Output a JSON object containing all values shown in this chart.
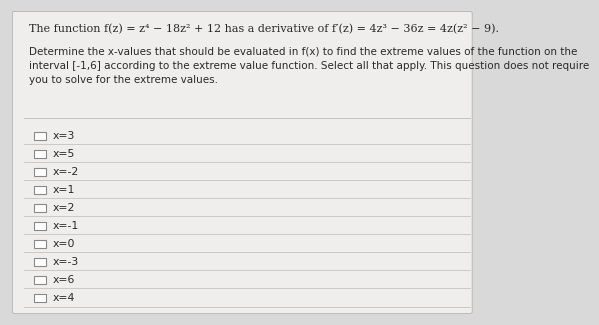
{
  "background_color": "#d9d9d9",
  "panel_color": "#f0eeec",
  "title_line": "The function f(z) = z⁴ − 18z² + 12 has a derivative of f′(z) = 4z³ − 36z = 4z(z² − 9).",
  "description": "Determine the x-values that should be evaluated in f(x) to find the extreme values of the function on the\ninterval [-1,6] according to the extreme value function. Select all that apply. This question does not require\nyou to solve for the extreme values.",
  "options": [
    "x=3",
    "x=5",
    "x=-2",
    "x=1",
    "x=2",
    "x=-1",
    "x=0",
    "x=-3",
    "x=6",
    "x=4"
  ],
  "text_color": "#2a2a2a",
  "line_color": "#bbbbbb",
  "checkbox_color": "#888888",
  "title_fontsize": 8.0,
  "desc_fontsize": 7.5,
  "option_fontsize": 7.8
}
